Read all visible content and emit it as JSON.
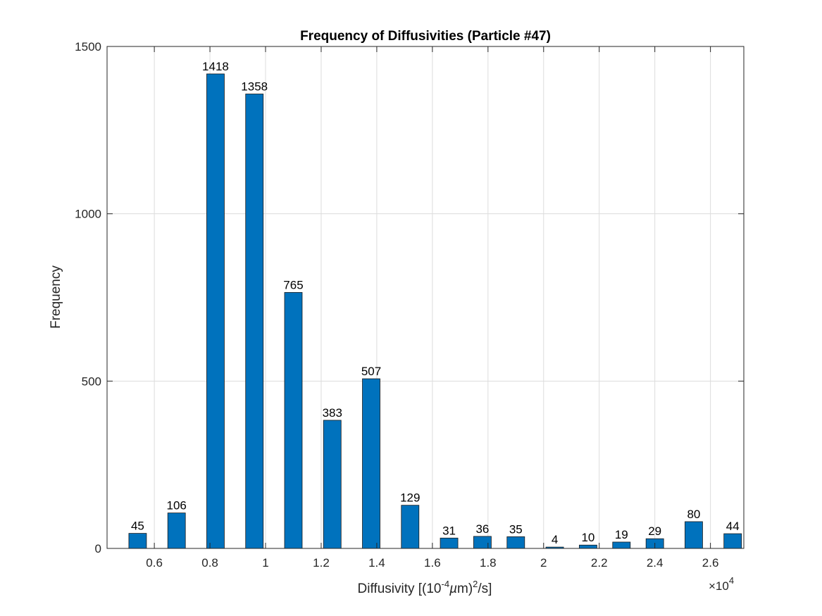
{
  "chart_data": {
    "type": "bar",
    "title": "Frequency of Diffusivities (Particle #47)",
    "xlabel": "Diffusivity [(10-4µm)2/s]",
    "ylabel": "Frequency",
    "x_exponent_label": "×104",
    "bar_color": "#0072BD",
    "x": [
      5400,
      6800,
      8200,
      9600,
      11000,
      12400,
      13800,
      15200,
      16600,
      17800,
      19000,
      20400,
      21600,
      22800,
      24000,
      25400,
      26800
    ],
    "values": [
      45,
      106,
      1418,
      1358,
      765,
      383,
      507,
      129,
      31,
      36,
      35,
      4,
      10,
      19,
      29,
      80,
      44
    ],
    "xlim": [
      4300,
      27200
    ],
    "ylim": [
      0,
      1500
    ],
    "xticks": [
      6000,
      8000,
      10000,
      12000,
      14000,
      16000,
      18000,
      20000,
      22000,
      24000,
      26000
    ],
    "xtick_labels": [
      "0.6",
      "0.8",
      "1",
      "1.2",
      "1.4",
      "1.6",
      "1.8",
      "2",
      "2.2",
      "2.4",
      "2.6"
    ],
    "yticks": [
      0,
      500,
      1000,
      1500
    ],
    "ytick_labels": [
      "0",
      "500",
      "1000",
      "1500"
    ],
    "grid": true
  }
}
